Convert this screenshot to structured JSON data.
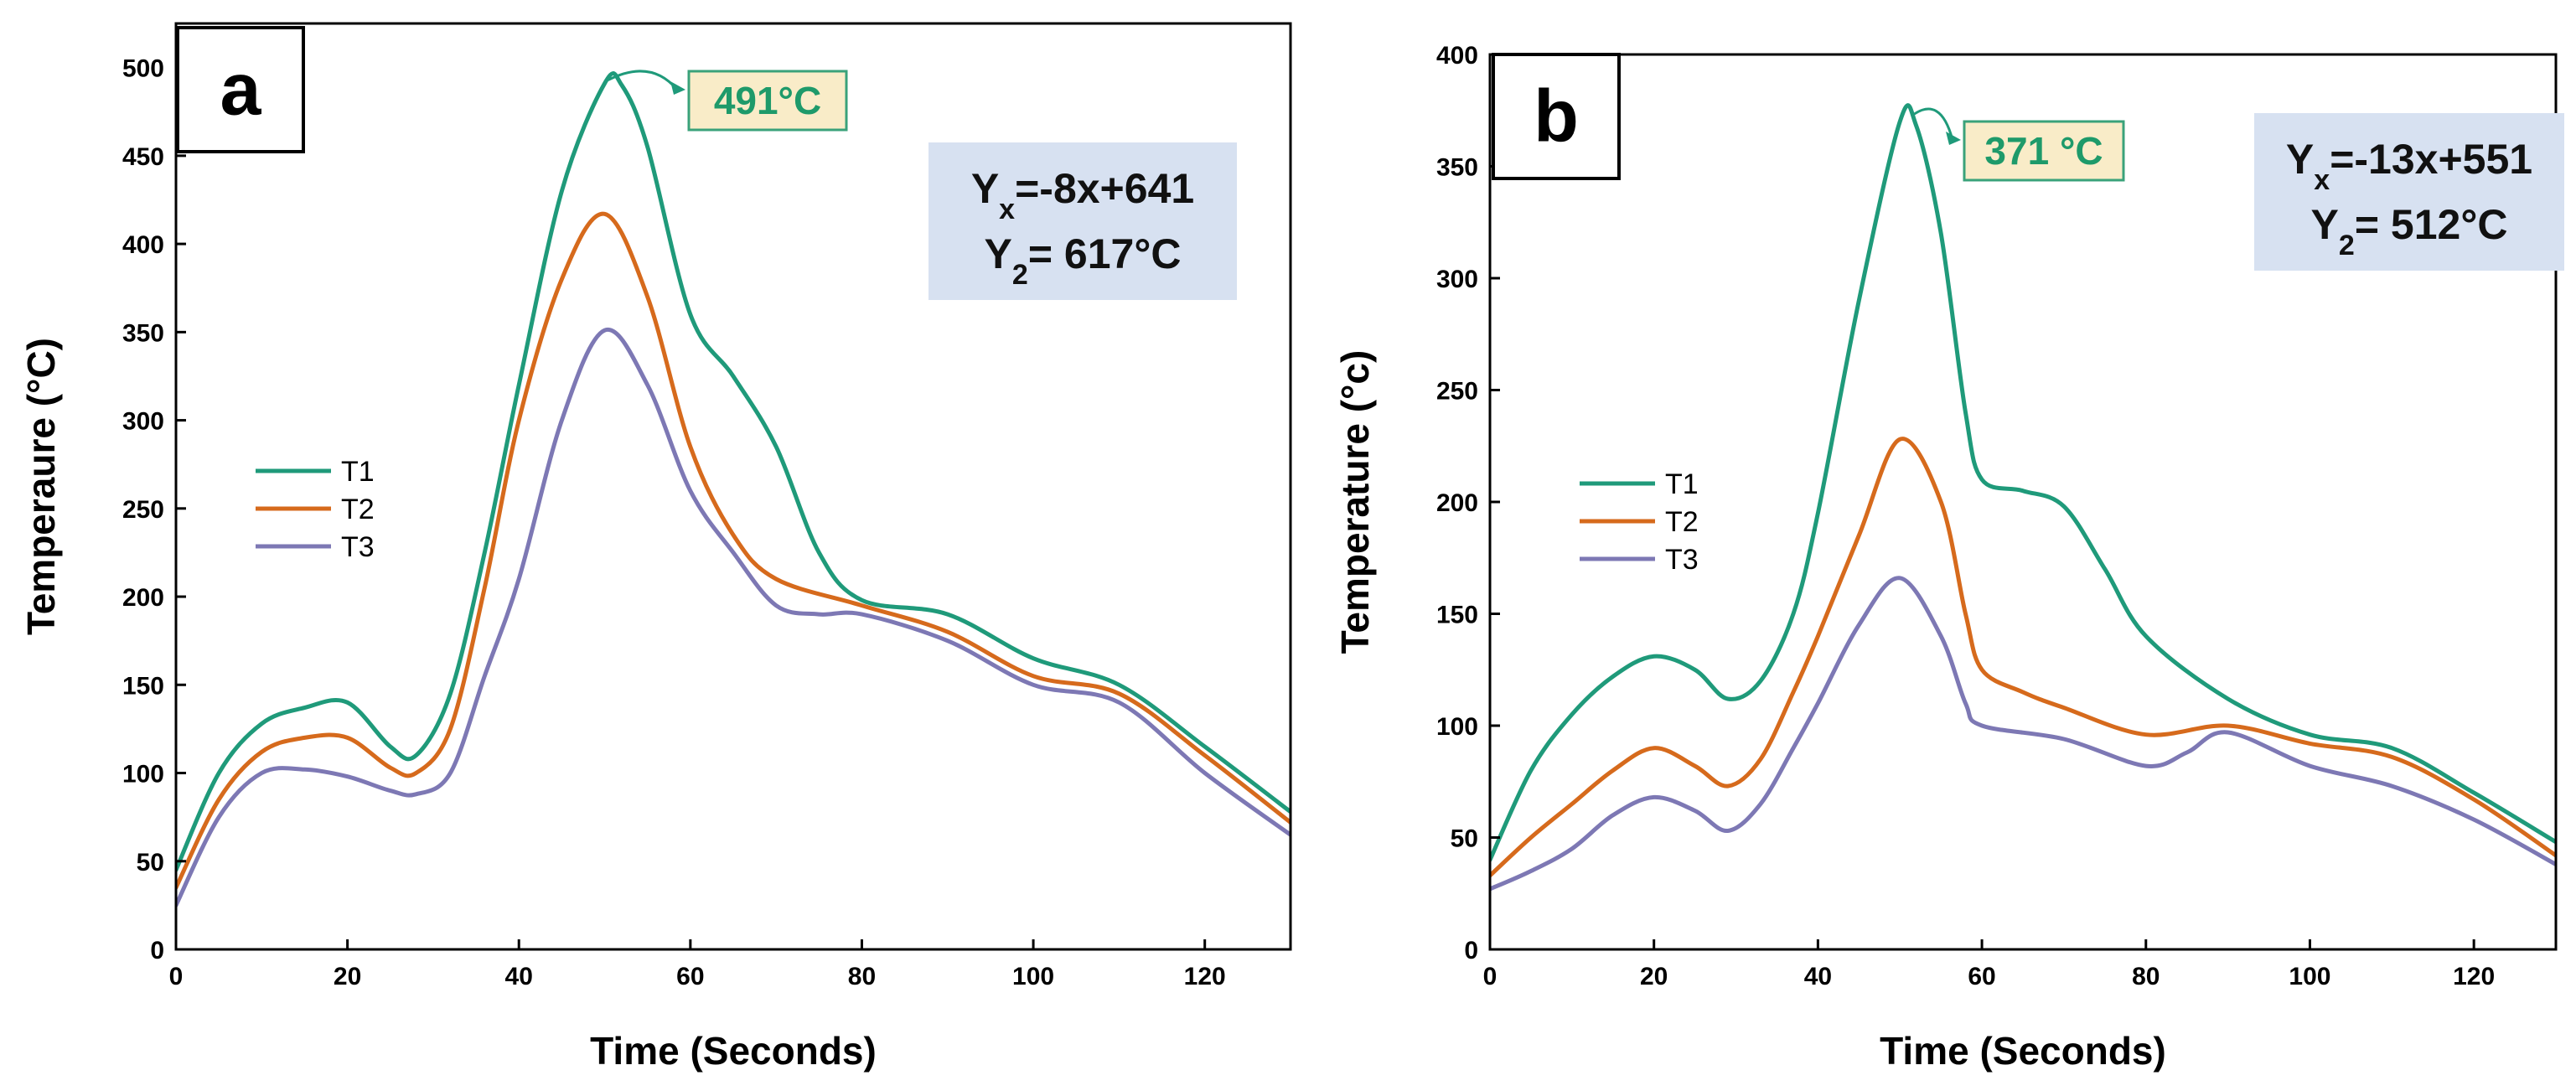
{
  "colors": {
    "T1": "#1f9a7a",
    "T2": "#d66a1c",
    "T3": "#7d78b4",
    "equation_box": "#d7e1f1",
    "peak_box_fill": "#f9ecc8",
    "peak_box_border": "#3aa27a",
    "peak_text": "#1e9a6a"
  },
  "chart_data": [
    {
      "type": "line",
      "panel_label": "a",
      "title": "",
      "xlabel": "Time (Seconds)",
      "ylabel": "Temperaure (°C)",
      "xlim": [
        0,
        130
      ],
      "ylim": [
        0,
        525
      ],
      "xticks": [
        0,
        20,
        40,
        60,
        80,
        100,
        120
      ],
      "yticks": [
        0,
        50,
        100,
        150,
        200,
        250,
        300,
        350,
        400,
        450,
        500
      ],
      "grid": false,
      "legend_position": "left",
      "series": [
        {
          "name": "T1",
          "x": [
            0,
            5,
            10,
            15,
            20,
            25,
            28,
            32,
            36,
            40,
            45,
            50,
            52,
            55,
            60,
            65,
            70,
            75,
            80,
            90,
            100,
            110,
            120,
            130
          ],
          "y": [
            45,
            100,
            128,
            137,
            140,
            115,
            110,
            145,
            225,
            320,
            430,
            491,
            490,
            455,
            360,
            325,
            285,
            225,
            198,
            190,
            165,
            150,
            115,
            78
          ]
        },
        {
          "name": "T2",
          "x": [
            0,
            5,
            10,
            15,
            20,
            25,
            28,
            32,
            36,
            40,
            45,
            50,
            55,
            60,
            65,
            70,
            80,
            90,
            100,
            110,
            120,
            130
          ],
          "y": [
            35,
            85,
            112,
            120,
            120,
            103,
            100,
            125,
            205,
            300,
            380,
            417,
            370,
            285,
            235,
            210,
            195,
            180,
            155,
            145,
            110,
            72
          ]
        },
        {
          "name": "T3",
          "x": [
            0,
            5,
            10,
            15,
            20,
            25,
            28,
            32,
            36,
            40,
            45,
            50,
            55,
            60,
            65,
            70,
            75,
            80,
            90,
            100,
            110,
            120,
            130
          ],
          "y": [
            25,
            75,
            100,
            102,
            98,
            90,
            88,
            100,
            155,
            210,
            300,
            351,
            320,
            260,
            225,
            195,
            190,
            190,
            175,
            150,
            140,
            100,
            65
          ]
        }
      ],
      "annotations": {
        "peak_label": "491°C",
        "peak_x": 50,
        "peak_y": 491,
        "equation_line1_main": "Y",
        "equation_line1_sub": "x",
        "equation_line1_rest": "=-8x+641",
        "equation_line2_main": "Y",
        "equation_line2_sub": "2",
        "equation_line2_rest": "= 617°C"
      }
    },
    {
      "type": "line",
      "panel_label": "b",
      "title": "",
      "xlabel": "Time (Seconds)",
      "ylabel": "Temperature (°c)",
      "xlim": [
        0,
        130
      ],
      "ylim": [
        0,
        400
      ],
      "xticks": [
        0,
        20,
        40,
        60,
        80,
        100,
        120
      ],
      "yticks": [
        0,
        50,
        100,
        150,
        200,
        250,
        300,
        350,
        400
      ],
      "grid": false,
      "legend_position": "left",
      "series": [
        {
          "name": "T1",
          "x": [
            0,
            5,
            10,
            15,
            20,
            25,
            29,
            33,
            37,
            40,
            45,
            50,
            52,
            55,
            58,
            60,
            65,
            70,
            75,
            80,
            90,
            100,
            110,
            120,
            130
          ],
          "y": [
            40,
            80,
            105,
            122,
            131,
            125,
            112,
            120,
            150,
            195,
            290,
            370,
            368,
            320,
            240,
            210,
            205,
            198,
            170,
            140,
            112,
            96,
            90,
            70,
            48
          ]
        },
        {
          "name": "T2",
          "x": [
            0,
            5,
            10,
            15,
            20,
            25,
            29,
            33,
            37,
            40,
            45,
            50,
            55,
            58,
            60,
            65,
            70,
            80,
            90,
            100,
            110,
            120,
            130
          ],
          "y": [
            33,
            50,
            65,
            80,
            90,
            82,
            73,
            85,
            115,
            140,
            185,
            228,
            200,
            150,
            125,
            115,
            108,
            96,
            100,
            92,
            86,
            67,
            42
          ]
        },
        {
          "name": "T3",
          "x": [
            0,
            5,
            10,
            15,
            20,
            25,
            29,
            33,
            37,
            40,
            45,
            50,
            55,
            58,
            60,
            70,
            80,
            85,
            90,
            100,
            110,
            120,
            130
          ],
          "y": [
            27,
            35,
            45,
            60,
            68,
            62,
            53,
            65,
            90,
            110,
            145,
            166,
            140,
            110,
            100,
            94,
            82,
            88,
            97,
            82,
            73,
            58,
            38
          ]
        }
      ],
      "annotations": {
        "peak_label": "371 °C",
        "peak_x": 51,
        "peak_y": 371,
        "equation_line1_main": "Y",
        "equation_line1_sub": "x",
        "equation_line1_rest": "=-13x+551",
        "equation_line2_main": "Y",
        "equation_line2_sub": "2",
        "equation_line2_rest": "= 512°C"
      }
    }
  ]
}
